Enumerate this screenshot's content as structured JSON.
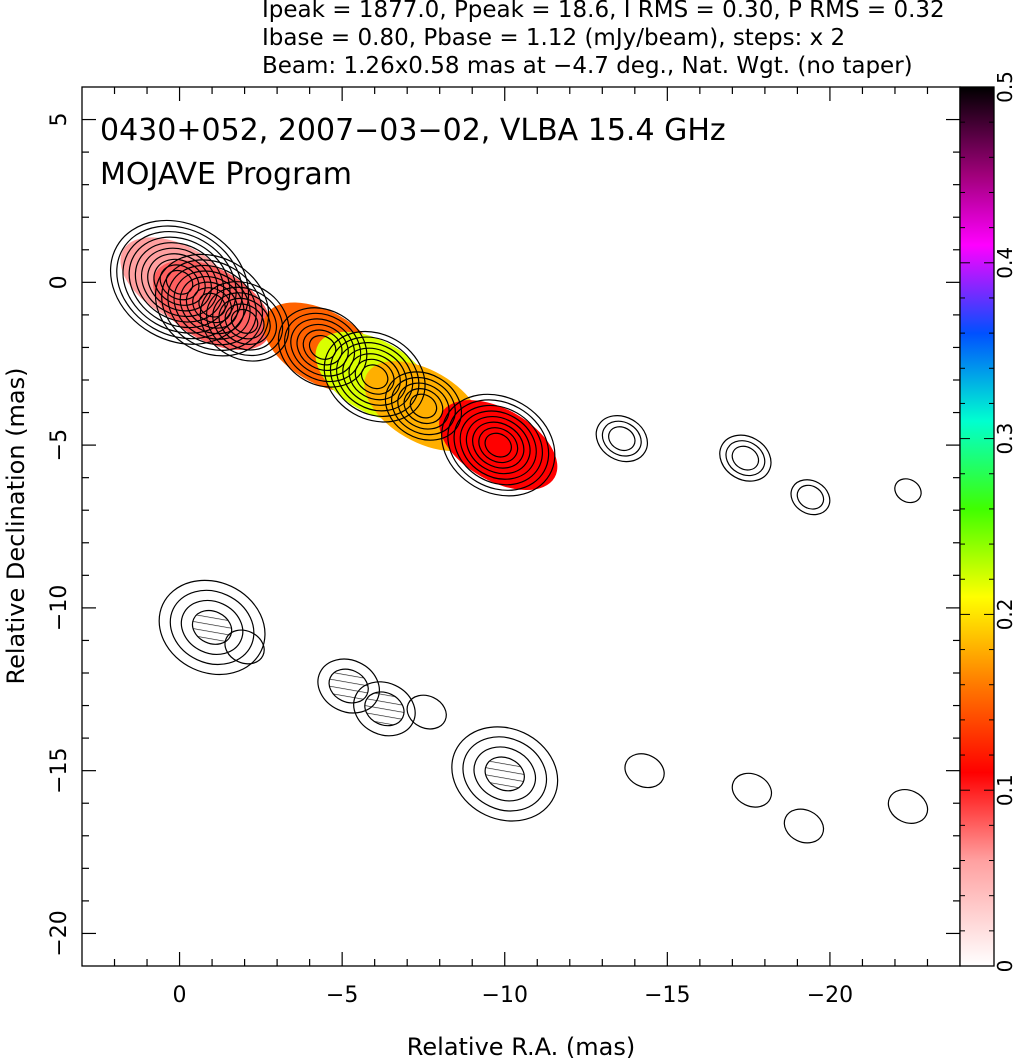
{
  "header": {
    "line1": "Ipeak = 1877.0, Ppeak = 18.6, I RMS = 0.30, P RMS = 0.32",
    "line2": "Ibase = 0.80, Pbase = 1.12 (mJy/beam), steps: x 2",
    "line3": "Beam: 1.26x0.58 mas at −4.7 deg., Nat. Wgt. (no taper)"
  },
  "chart_data": {
    "type": "contour_map",
    "title_line1": "0430+052, 2007−03−02, VLBA 15.4 GHz",
    "title_line2": "MOJAVE Program",
    "xlabel": "Relative R.A. (mas)",
    "ylabel": "Relative Declination (mas)",
    "xlim": [
      3,
      -24
    ],
    "ylim": [
      -21,
      6
    ],
    "xticks": [
      {
        "v": 0,
        "label": "0"
      },
      {
        "v": -5,
        "label": "−5"
      },
      {
        "v": -10,
        "label": "−10"
      },
      {
        "v": -15,
        "label": "−15"
      },
      {
        "v": -20,
        "label": "−20"
      }
    ],
    "yticks": [
      {
        "v": 5,
        "label": "5"
      },
      {
        "v": 0,
        "label": "0"
      },
      {
        "v": -5,
        "label": "−5"
      },
      {
        "v": -10,
        "label": "−10"
      },
      {
        "v": -15,
        "label": "−15"
      },
      {
        "v": -20,
        "label": "−20"
      }
    ],
    "colorbar": {
      "min": 0,
      "max": 0.5,
      "ticks": [
        {
          "v": 0,
          "label": "0"
        },
        {
          "v": 0.1,
          "label": "0.1"
        },
        {
          "v": 0.2,
          "label": "0.2"
        },
        {
          "v": 0.3,
          "label": "0.3"
        },
        {
          "v": 0.4,
          "label": "0.4"
        },
        {
          "v": 0.5,
          "label": "0.5"
        }
      ],
      "colors": [
        "#ffffff",
        "#ff0000",
        "#ff8c00",
        "#ffff00",
        "#00ff00",
        "#00ffff",
        "#0000ff",
        "#ff00ff",
        "#000000"
      ]
    },
    "jet_components": [
      {
        "x": 0.0,
        "y": 0.0,
        "level": 10,
        "fp": 0.06
      },
      {
        "x": -1.0,
        "y": -0.7,
        "level": 8,
        "fp": 0.08
      },
      {
        "x": -2.0,
        "y": -1.2,
        "level": 6,
        "fp": null
      },
      {
        "x": -4.4,
        "y": -2.0,
        "level": 6,
        "fp": 0.15
      },
      {
        "x": -6.0,
        "y": -2.9,
        "level": 7,
        "fp": 0.22
      },
      {
        "x": -7.5,
        "y": -3.8,
        "level": 5,
        "fp": 0.18
      },
      {
        "x": -9.8,
        "y": -5.0,
        "level": 8,
        "fp": 0.11
      },
      {
        "x": -13.6,
        "y": -4.8,
        "level": 3,
        "fp": null
      },
      {
        "x": -17.4,
        "y": -5.4,
        "level": 3,
        "fp": null
      },
      {
        "x": -19.4,
        "y": -6.6,
        "level": 2,
        "fp": null
      },
      {
        "x": -22.4,
        "y": -6.4,
        "level": 1,
        "fp": null
      }
    ],
    "pol_components": [
      {
        "x": -1.0,
        "y": -10.6,
        "level": 4
      },
      {
        "x": -2.0,
        "y": -11.2,
        "level": 1
      },
      {
        "x": -5.2,
        "y": -12.4,
        "level": 2
      },
      {
        "x": -6.3,
        "y": -13.1,
        "level": 2
      },
      {
        "x": -7.6,
        "y": -13.2,
        "level": 1
      },
      {
        "x": -10.0,
        "y": -15.1,
        "level": 4
      },
      {
        "x": -14.3,
        "y": -15.0,
        "level": 1
      },
      {
        "x": -17.6,
        "y": -15.6,
        "level": 1
      },
      {
        "x": -19.2,
        "y": -16.7,
        "level": 1
      },
      {
        "x": -22.4,
        "y": -16.1,
        "level": 1
      }
    ]
  }
}
